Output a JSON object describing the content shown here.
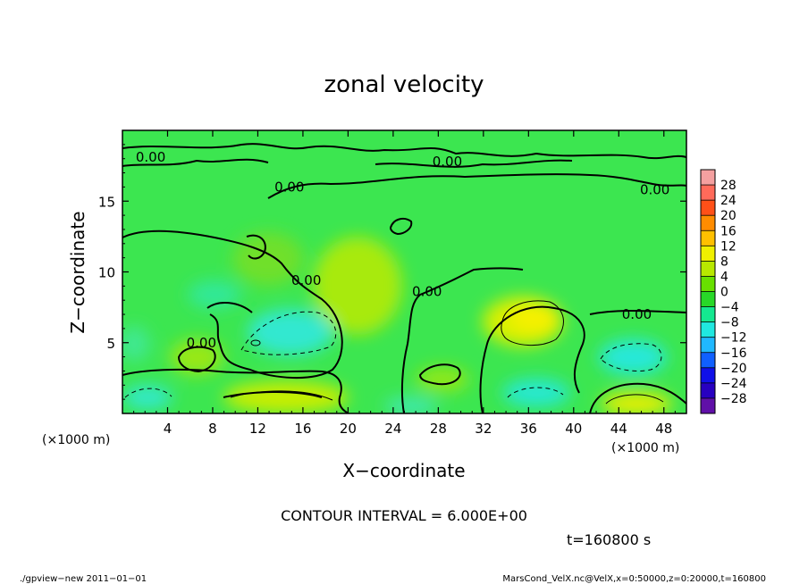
{
  "chart_data": {
    "type": "heatmap",
    "title": "zonal velocity",
    "xlabel": "X−coordinate",
    "ylabel": "Z−coordinate",
    "xunit_left": "(×1000 m)",
    "xunit_right": "(×1000 m)",
    "xlim": [
      0,
      50
    ],
    "ylim": [
      0,
      20
    ],
    "x_ticks": [
      4,
      8,
      12,
      16,
      20,
      24,
      28,
      32,
      36,
      40,
      44,
      48
    ],
    "y_ticks": [
      5,
      10,
      15
    ],
    "x_tick_labels": [
      "4",
      "8",
      "12",
      "16",
      "20",
      "24",
      "28",
      "32",
      "36",
      "40",
      "44",
      "48"
    ],
    "y_tick_labels": [
      "5",
      "10",
      "15"
    ],
    "colorbar": {
      "labels": [
        "28",
        "24",
        "20",
        "16",
        "12",
        "8",
        "4",
        "0",
        "−4",
        "−8",
        "−12",
        "−16",
        "−20",
        "−24",
        "−28"
      ],
      "colors": [
        "#f4a0a0",
        "#ff6a5a",
        "#ff5018",
        "#ff8c00",
        "#ffc000",
        "#f0f000",
        "#b8e800",
        "#68e000",
        "#28d828",
        "#14e890",
        "#20e8e0",
        "#20b8ff",
        "#1060ff",
        "#1010e8",
        "#2800c0",
        "#6010a8"
      ]
    },
    "contour_labels": [
      {
        "text": "0.00",
        "x": 2.5,
        "y": 18.1
      },
      {
        "text": "0.00",
        "x": 28.8,
        "y": 17.8
      },
      {
        "text": "0.00",
        "x": 14.8,
        "y": 16.0
      },
      {
        "text": "0.00",
        "x": 47.2,
        "y": 15.8
      },
      {
        "text": "0.00",
        "x": 16.3,
        "y": 9.4
      },
      {
        "text": "0.00",
        "x": 27.0,
        "y": 8.6
      },
      {
        "text": "0.00",
        "x": 45.6,
        "y": 7.0
      },
      {
        "text": "0.00",
        "x": 7.0,
        "y": 5.0
      }
    ],
    "contour_interval_text": "CONTOUR INTERVAL = 6.000E+00",
    "time_text": "t=160800 s"
  },
  "footer": {
    "left": "./gpview−new  2011−01−01",
    "right": "MarsCond_VelX.nc@VelX,x=0:50000,z=0:20000,t=160800"
  }
}
